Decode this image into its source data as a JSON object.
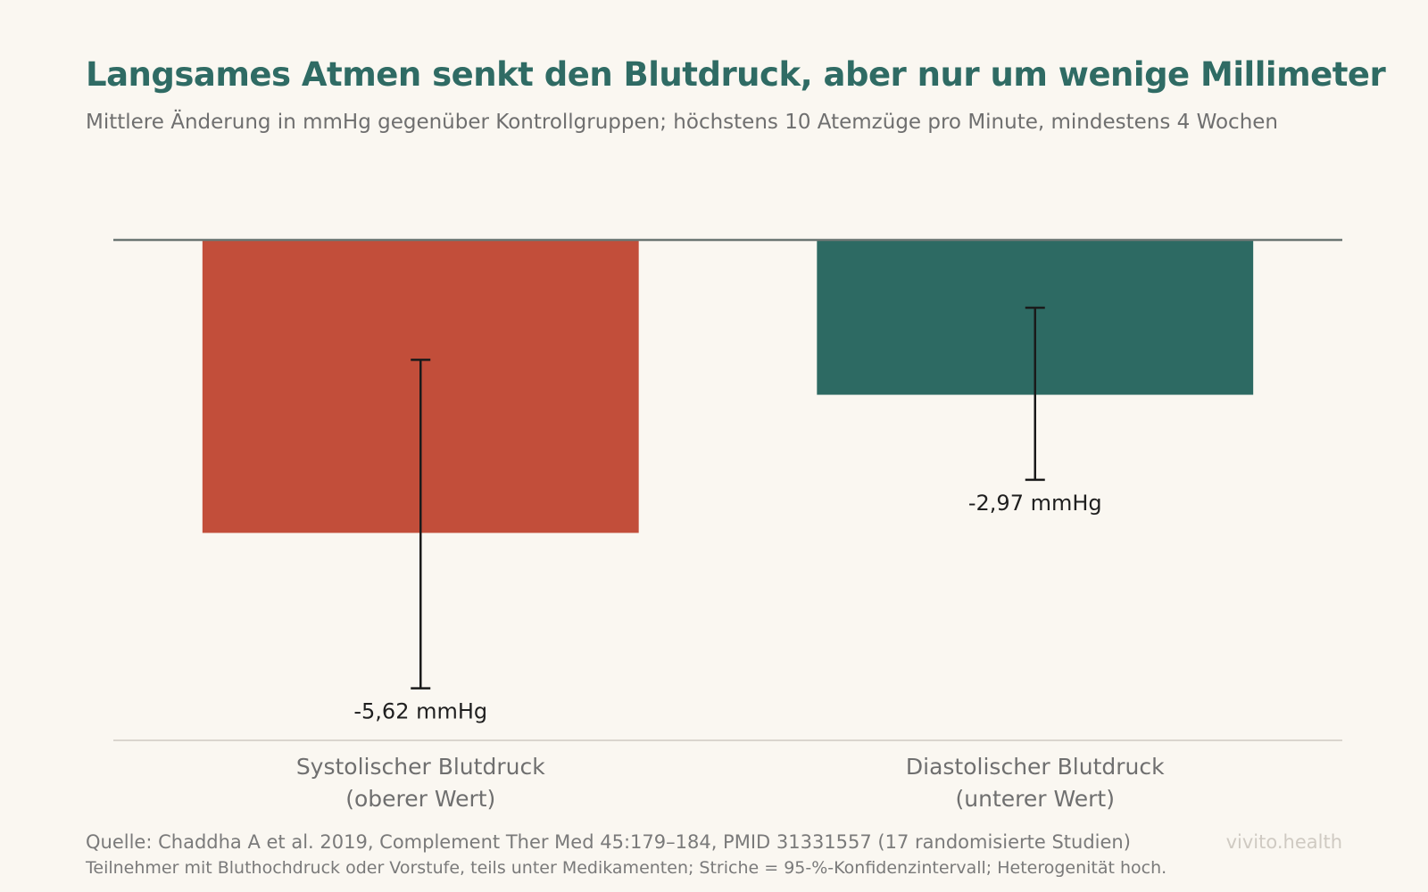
{
  "colors": {
    "background": "#faf7f1",
    "title": "#2f6b64",
    "systolic_bar": "#c24e3a",
    "diastolic_bar": "#2d6a63",
    "text_muted": "#6f6f6f",
    "zero_line": "#6b7673",
    "bottom_line": "#cfcac2",
    "error_bar": "#1a1a1a"
  },
  "chart_data": {
    "type": "bar",
    "title": "Langsames Atmen senkt den Blutdruck, aber nur um wenige Millimeter",
    "subtitle": "Mittlere Änderung in mmHg gegenüber Kontrollgruppen; höchstens 10 Atemzüge pro Minute, mindestens 4 Wochen",
    "categories": [
      [
        "Systolischer Blutdruck",
        "(oberer Wert)"
      ],
      [
        "Diastolischer Blutdruck",
        "(unterer Wert)"
      ]
    ],
    "values": [
      -5.62,
      -2.97
    ],
    "ci_low": [
      -8.6,
      -4.6
    ],
    "ci_high": [
      -2.3,
      -1.3
    ],
    "data_labels": [
      "-5,62 mmHg",
      "-2,97 mmHg"
    ],
    "bar_colors": [
      "#c24e3a",
      "#2d6a63"
    ],
    "ylim": [
      -9.6,
      0
    ],
    "xlabel": "",
    "ylabel": "",
    "grid": false,
    "legend": "none"
  },
  "footer": {
    "source": "Quelle: Chaddha A et al. 2019, Complement Ther Med 45:179–184, PMID 31331557 (17 randomisierte Studien)",
    "note": "Teilnehmer mit Bluthochdruck oder Vorstufe, teils unter Medikamenten; Striche = 95-%-Konfidenzintervall; Heterogenität hoch.",
    "brand": "vivito.health"
  }
}
